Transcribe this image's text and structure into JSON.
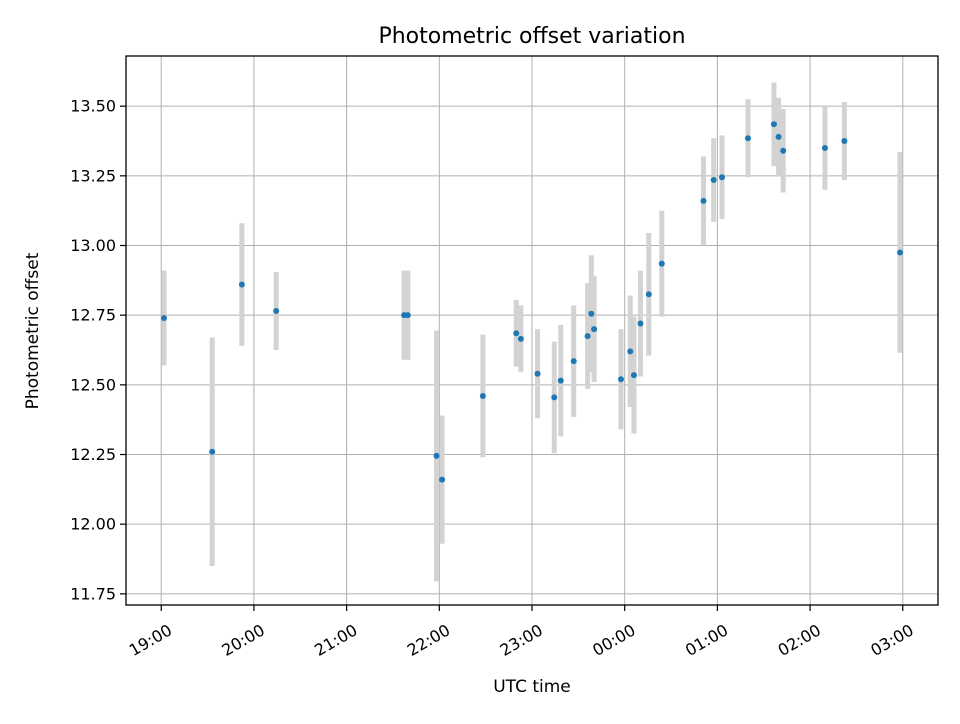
{
  "chart_data": {
    "type": "scatter",
    "title": "Photometric offset variation",
    "xlabel": "UTC time",
    "ylabel": "Photometric offset",
    "x_ticks": [
      "19:00",
      "20:00",
      "21:00",
      "22:00",
      "23:00",
      "00:00",
      "01:00",
      "02:00",
      "03:00"
    ],
    "y_ticks": [
      "11.75",
      "12.00",
      "12.25",
      "12.50",
      "12.75",
      "13.00",
      "13.25",
      "13.50"
    ],
    "xlim": [
      -0.38,
      8.38
    ],
    "ylim": [
      11.71,
      13.68
    ],
    "grid": true,
    "colors": {
      "point": "#1f77b4",
      "errorbar": "#d3d3d3",
      "grid": "#b0b0b0"
    },
    "points": [
      {
        "x": 0.03,
        "y": 12.74,
        "err": 0.17
      },
      {
        "x": 0.55,
        "y": 12.26,
        "err": 0.41
      },
      {
        "x": 0.87,
        "y": 12.86,
        "err": 0.22
      },
      {
        "x": 1.24,
        "y": 12.765,
        "err": 0.14
      },
      {
        "x": 2.62,
        "y": 12.75,
        "err": 0.16
      },
      {
        "x": 2.66,
        "y": 12.75,
        "err": 0.16
      },
      {
        "x": 2.97,
        "y": 12.245,
        "err": 0.45
      },
      {
        "x": 3.03,
        "y": 12.16,
        "err": 0.23
      },
      {
        "x": 3.47,
        "y": 12.46,
        "err": 0.22
      },
      {
        "x": 3.83,
        "y": 12.685,
        "err": 0.12
      },
      {
        "x": 3.88,
        "y": 12.665,
        "err": 0.12
      },
      {
        "x": 4.06,
        "y": 12.54,
        "err": 0.16
      },
      {
        "x": 4.24,
        "y": 12.455,
        "err": 0.2
      },
      {
        "x": 4.31,
        "y": 12.515,
        "err": 0.2
      },
      {
        "x": 4.45,
        "y": 12.585,
        "err": 0.2
      },
      {
        "x": 4.6,
        "y": 12.675,
        "err": 0.19
      },
      {
        "x": 4.64,
        "y": 12.755,
        "err": 0.21
      },
      {
        "x": 4.67,
        "y": 12.7,
        "err": 0.19
      },
      {
        "x": 4.96,
        "y": 12.52,
        "err": 0.18
      },
      {
        "x": 5.06,
        "y": 12.62,
        "err": 0.2
      },
      {
        "x": 5.1,
        "y": 12.535,
        "err": 0.21
      },
      {
        "x": 5.17,
        "y": 12.72,
        "err": 0.19
      },
      {
        "x": 5.26,
        "y": 12.825,
        "err": 0.22
      },
      {
        "x": 5.4,
        "y": 12.935,
        "err": 0.19
      },
      {
        "x": 5.85,
        "y": 13.16,
        "err": 0.16
      },
      {
        "x": 5.96,
        "y": 13.235,
        "err": 0.15
      },
      {
        "x": 6.05,
        "y": 13.245,
        "err": 0.15
      },
      {
        "x": 6.33,
        "y": 13.385,
        "err": 0.14
      },
      {
        "x": 6.61,
        "y": 13.435,
        "err": 0.15
      },
      {
        "x": 6.66,
        "y": 13.39,
        "err": 0.14
      },
      {
        "x": 6.71,
        "y": 13.34,
        "err": 0.15
      },
      {
        "x": 7.16,
        "y": 13.35,
        "err": 0.15
      },
      {
        "x": 7.37,
        "y": 13.375,
        "err": 0.14
      },
      {
        "x": 7.97,
        "y": 12.975,
        "err": 0.36
      }
    ]
  }
}
